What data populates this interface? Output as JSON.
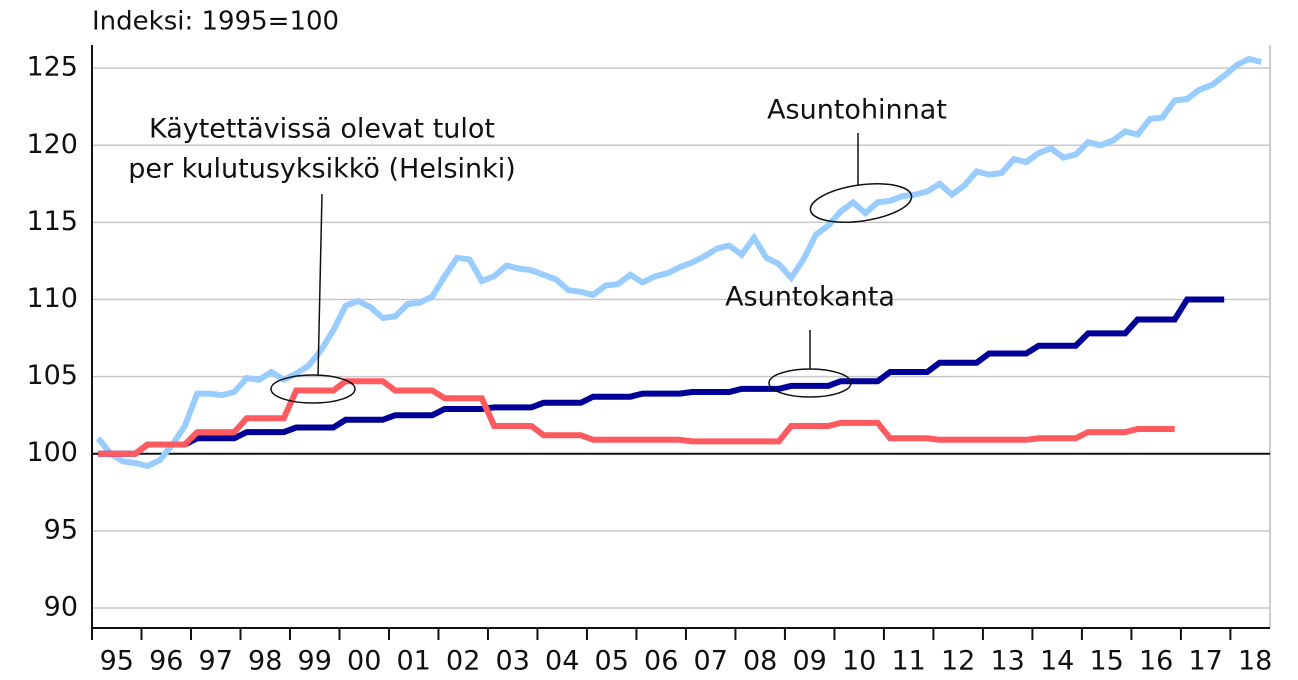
{
  "chart_data": {
    "type": "line",
    "title": "Indeksi: 1995=100",
    "x": [
      1995.125,
      1995.375,
      1995.625,
      1995.875,
      1996.125,
      1996.375,
      1996.625,
      1996.875,
      1997.125,
      1997.375,
      1997.625,
      1997.875,
      1998.125,
      1998.375,
      1998.625,
      1998.875,
      1999.125,
      1999.375,
      1999.625,
      1999.875,
      2000.125,
      2000.375,
      2000.625,
      2000.875,
      2001.125,
      2001.375,
      2001.625,
      2001.875,
      2002.125,
      2002.375,
      2002.625,
      2002.875,
      2003.125,
      2003.375,
      2003.625,
      2003.875,
      2004.125,
      2004.375,
      2004.625,
      2004.875,
      2005.125,
      2005.375,
      2005.625,
      2005.875,
      2006.125,
      2006.375,
      2006.625,
      2006.875,
      2007.125,
      2007.375,
      2007.625,
      2007.875,
      2008.125,
      2008.375,
      2008.625,
      2008.875,
      2009.125,
      2009.375,
      2009.625,
      2009.875,
      2010.125,
      2010.375,
      2010.625,
      2010.875,
      2011.125,
      2011.375,
      2011.625,
      2011.875,
      2012.125,
      2012.375,
      2012.625,
      2012.875,
      2013.125,
      2013.375,
      2013.625,
      2013.875,
      2014.125,
      2014.375,
      2014.625,
      2014.875,
      2015.125,
      2015.375,
      2015.625,
      2015.875,
      2016.125,
      2016.375,
      2016.625,
      2016.875,
      2017.125,
      2017.375,
      2017.625,
      2017.875,
      2018.125,
      2018.375,
      2018.625,
      2018.875
    ],
    "series": [
      {
        "name": "Asuntohinnat",
        "color": "#99ccff",
        "values": [
          101.0,
          100.0,
          99.5,
          99.4,
          99.2,
          99.6,
          100.6,
          101.8,
          103.9,
          103.9,
          103.8,
          104.0,
          104.9,
          104.8,
          105.3,
          104.8,
          105.2,
          105.7,
          106.7,
          108.0,
          109.6,
          109.9,
          109.5,
          108.8,
          108.9,
          109.7,
          109.8,
          110.2,
          111.5,
          112.7,
          112.6,
          111.2,
          111.5,
          112.2,
          112.0,
          111.9,
          111.6,
          111.3,
          110.6,
          110.5,
          110.3,
          110.9,
          111.0,
          111.6,
          111.1,
          111.5,
          111.7,
          112.1,
          112.4,
          112.8,
          113.3,
          113.5,
          112.9,
          114.0,
          112.7,
          112.3,
          111.4,
          112.6,
          114.2,
          114.8,
          115.7,
          116.3,
          115.6,
          116.3,
          116.4,
          116.7,
          116.8,
          117.0,
          117.5,
          116.8,
          117.4,
          118.3,
          118.1,
          118.2,
          119.1,
          118.9,
          119.5,
          119.8,
          119.2,
          119.4,
          120.2,
          120.0,
          120.3,
          120.9,
          120.7,
          121.7,
          121.8,
          122.9,
          123.0,
          123.6,
          123.9,
          124.5,
          125.2,
          125.6,
          125.4,
          null
        ]
      },
      {
        "name": "Asuntokanta",
        "color": "#000099",
        "values": [
          100.0,
          100.0,
          100.0,
          100.0,
          100.6,
          100.6,
          100.6,
          100.6,
          101.0,
          101.0,
          101.0,
          101.0,
          101.4,
          101.4,
          101.4,
          101.4,
          101.7,
          101.7,
          101.7,
          101.7,
          102.2,
          102.2,
          102.2,
          102.2,
          102.5,
          102.5,
          102.5,
          102.5,
          102.9,
          102.9,
          102.9,
          102.9,
          103.0,
          103.0,
          103.0,
          103.0,
          103.3,
          103.3,
          103.3,
          103.3,
          103.7,
          103.7,
          103.7,
          103.7,
          103.9,
          103.9,
          103.9,
          103.9,
          104.0,
          104.0,
          104.0,
          104.0,
          104.2,
          104.2,
          104.2,
          104.2,
          104.4,
          104.4,
          104.4,
          104.4,
          104.7,
          104.7,
          104.7,
          104.7,
          105.3,
          105.3,
          105.3,
          105.3,
          105.9,
          105.9,
          105.9,
          105.9,
          106.5,
          106.5,
          106.5,
          106.5,
          107.0,
          107.0,
          107.0,
          107.0,
          107.8,
          107.8,
          107.8,
          107.8,
          108.7,
          108.7,
          108.7,
          108.7,
          110.0,
          110.0,
          110.0,
          110.0,
          null,
          null,
          null,
          null
        ]
      },
      {
        "name": "Käytettävissä olevat tulot per kulutusyksikkö (Helsinki)",
        "color": "#ff5a5f",
        "values": [
          100.0,
          100.0,
          100.0,
          100.0,
          100.6,
          100.6,
          100.6,
          100.6,
          101.4,
          101.4,
          101.4,
          101.4,
          102.3,
          102.3,
          102.3,
          102.3,
          104.1,
          104.1,
          104.1,
          104.1,
          104.7,
          104.7,
          104.7,
          104.7,
          104.1,
          104.1,
          104.1,
          104.1,
          103.6,
          103.6,
          103.6,
          103.6,
          101.8,
          101.8,
          101.8,
          101.8,
          101.2,
          101.2,
          101.2,
          101.2,
          100.9,
          100.9,
          100.9,
          100.9,
          100.9,
          100.9,
          100.9,
          100.9,
          100.8,
          100.8,
          100.8,
          100.8,
          100.8,
          100.8,
          100.8,
          100.8,
          101.8,
          101.8,
          101.8,
          101.8,
          102.0,
          102.0,
          102.0,
          102.0,
          101.0,
          101.0,
          101.0,
          101.0,
          100.9,
          100.9,
          100.9,
          100.9,
          100.9,
          100.9,
          100.9,
          100.9,
          101.0,
          101.0,
          101.0,
          101.0,
          101.4,
          101.4,
          101.4,
          101.4,
          101.6,
          101.6,
          101.6,
          101.6,
          null,
          null,
          null,
          null,
          null,
          null,
          null,
          null
        ]
      }
    ],
    "annotations": [
      [
        "Käytettävissä olevat tulot",
        "per kulutusyksikkö (Helsinki)"
      ],
      "Asuntohinnat",
      "Asuntokanta"
    ],
    "xlim": [
      1995,
      2018.8
    ],
    "xticks": [
      {
        "value": 1995,
        "label": "95"
      },
      {
        "value": 1996,
        "label": "96"
      },
      {
        "value": 1997,
        "label": "97"
      },
      {
        "value": 1998,
        "label": "98"
      },
      {
        "value": 1999,
        "label": "99"
      },
      {
        "value": 2000,
        "label": "00"
      },
      {
        "value": 2001,
        "label": "01"
      },
      {
        "value": 2002,
        "label": "02"
      },
      {
        "value": 2003,
        "label": "03"
      },
      {
        "value": 2004,
        "label": "04"
      },
      {
        "value": 2005,
        "label": "05"
      },
      {
        "value": 2006,
        "label": "06"
      },
      {
        "value": 2007,
        "label": "07"
      },
      {
        "value": 2008,
        "label": "08"
      },
      {
        "value": 2009,
        "label": "09"
      },
      {
        "value": 2010,
        "label": "10"
      },
      {
        "value": 2011,
        "label": "11"
      },
      {
        "value": 2012,
        "label": "12"
      },
      {
        "value": 2013,
        "label": "13"
      },
      {
        "value": 2014,
        "label": "14"
      },
      {
        "value": 2015,
        "label": "15"
      },
      {
        "value": 2016,
        "label": "16"
      },
      {
        "value": 2017,
        "label": "17"
      },
      {
        "value": 2018,
        "label": "18"
      }
    ],
    "ylim": [
      88.7,
      126.5
    ],
    "yticks": [
      90,
      95,
      100,
      105,
      110,
      115,
      120,
      125
    ],
    "baseline": 100,
    "grid": true
  }
}
